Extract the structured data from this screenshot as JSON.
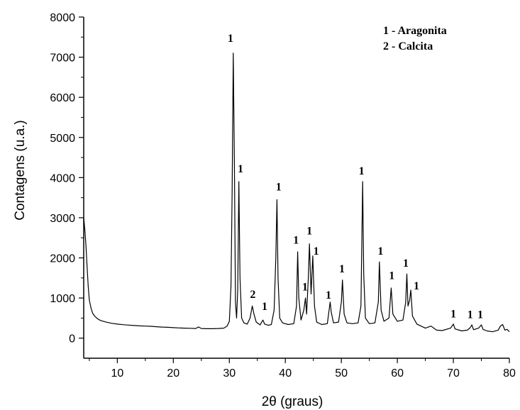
{
  "chart_data": {
    "type": "line",
    "title": "",
    "xlabel": "2θ (graus)",
    "ylabel": "Contagens (u.a.)",
    "xlim": [
      4,
      80
    ],
    "ylim": [
      -500,
      8000
    ],
    "xticks": [
      10,
      20,
      30,
      40,
      50,
      60,
      70,
      80
    ],
    "yticks": [
      0,
      1000,
      2000,
      3000,
      4000,
      5000,
      6000,
      7000,
      8000
    ],
    "grid": false,
    "legend": {
      "placement": "top-right",
      "entries": [
        "1 - Aragonita",
        "2 - Calcita"
      ]
    },
    "series": [
      {
        "color": "#000000",
        "points": [
          [
            4.0,
            3000
          ],
          [
            4.2,
            2700
          ],
          [
            4.4,
            2300
          ],
          [
            4.6,
            1800
          ],
          [
            4.8,
            1300
          ],
          [
            5.0,
            950
          ],
          [
            5.3,
            750
          ],
          [
            5.6,
            620
          ],
          [
            6.0,
            540
          ],
          [
            6.5,
            480
          ],
          [
            7.0,
            440
          ],
          [
            8.0,
            400
          ],
          [
            9.0,
            370
          ],
          [
            10.0,
            350
          ],
          [
            11.0,
            335
          ],
          [
            12.0,
            325
          ],
          [
            13.0,
            315
          ],
          [
            14.0,
            305
          ],
          [
            15.0,
            300
          ],
          [
            16.0,
            295
          ],
          [
            17.0,
            285
          ],
          [
            18.0,
            275
          ],
          [
            19.0,
            270
          ],
          [
            20.0,
            262
          ],
          [
            21.0,
            255
          ],
          [
            22.0,
            250
          ],
          [
            23.0,
            245
          ],
          [
            24.0,
            240
          ],
          [
            24.5,
            280
          ],
          [
            25.0,
            240
          ],
          [
            26.0,
            235
          ],
          [
            27.0,
            235
          ],
          [
            28.0,
            240
          ],
          [
            29.0,
            250
          ],
          [
            29.6,
            300
          ],
          [
            30.0,
            420
          ],
          [
            30.3,
            1300
          ],
          [
            30.5,
            3600
          ],
          [
            30.7,
            7100
          ],
          [
            30.9,
            4400
          ],
          [
            31.1,
            900
          ],
          [
            31.3,
            500
          ],
          [
            31.5,
            1200
          ],
          [
            31.7,
            3900
          ],
          [
            31.9,
            1500
          ],
          [
            32.2,
            500
          ],
          [
            32.6,
            380
          ],
          [
            33.2,
            350
          ],
          [
            33.7,
            500
          ],
          [
            34.1,
            800
          ],
          [
            34.4,
            600
          ],
          [
            34.8,
            400
          ],
          [
            35.5,
            330
          ],
          [
            36.0,
            450
          ],
          [
            36.3,
            350
          ],
          [
            37.0,
            320
          ],
          [
            37.5,
            340
          ],
          [
            38.0,
            700
          ],
          [
            38.3,
            2000
          ],
          [
            38.5,
            3450
          ],
          [
            38.7,
            1500
          ],
          [
            39.0,
            500
          ],
          [
            39.5,
            380
          ],
          [
            40.5,
            340
          ],
          [
            41.5,
            360
          ],
          [
            42.0,
            800
          ],
          [
            42.2,
            2150
          ],
          [
            42.4,
            1000
          ],
          [
            42.8,
            450
          ],
          [
            43.3,
            700
          ],
          [
            43.6,
            1000
          ],
          [
            43.8,
            600
          ],
          [
            44.1,
            1500
          ],
          [
            44.3,
            2350
          ],
          [
            44.6,
            1100
          ],
          [
            44.9,
            2050
          ],
          [
            45.2,
            800
          ],
          [
            45.6,
            400
          ],
          [
            46.5,
            340
          ],
          [
            47.5,
            360
          ],
          [
            48.0,
            900
          ],
          [
            48.2,
            650
          ],
          [
            48.6,
            380
          ],
          [
            49.5,
            400
          ],
          [
            50.0,
            900
          ],
          [
            50.2,
            1450
          ],
          [
            50.5,
            600
          ],
          [
            51.0,
            380
          ],
          [
            52.0,
            360
          ],
          [
            53.0,
            380
          ],
          [
            53.5,
            800
          ],
          [
            53.8,
            3900
          ],
          [
            54.0,
            1600
          ],
          [
            54.3,
            500
          ],
          [
            55.0,
            360
          ],
          [
            56.0,
            380
          ],
          [
            56.6,
            900
          ],
          [
            56.8,
            1900
          ],
          [
            57.1,
            700
          ],
          [
            57.6,
            420
          ],
          [
            58.5,
            500
          ],
          [
            58.9,
            1250
          ],
          [
            59.2,
            600
          ],
          [
            60.0,
            420
          ],
          [
            61.0,
            450
          ],
          [
            61.5,
            900
          ],
          [
            61.7,
            1600
          ],
          [
            61.9,
            800
          ],
          [
            62.2,
            950
          ],
          [
            62.4,
            1200
          ],
          [
            62.7,
            550
          ],
          [
            63.5,
            350
          ],
          [
            65.0,
            250
          ],
          [
            66.0,
            300
          ],
          [
            67.0,
            200
          ],
          [
            68.0,
            190
          ],
          [
            69.5,
            250
          ],
          [
            70.0,
            350
          ],
          [
            70.3,
            230
          ],
          [
            71.5,
            180
          ],
          [
            72.5,
            200
          ],
          [
            73.0,
            260
          ],
          [
            73.3,
            330
          ],
          [
            73.6,
            210
          ],
          [
            74.5,
            250
          ],
          [
            75.0,
            330
          ],
          [
            75.3,
            220
          ],
          [
            76.0,
            180
          ],
          [
            77.0,
            160
          ],
          [
            78.0,
            200
          ],
          [
            78.4,
            300
          ],
          [
            78.8,
            340
          ],
          [
            79.2,
            200
          ],
          [
            79.6,
            220
          ],
          [
            80.0,
            160
          ]
        ]
      }
    ],
    "annotations": [
      {
        "text": "1",
        "x": 30.2,
        "y": 7380
      },
      {
        "text": "1",
        "x": 32.0,
        "y": 4130
      },
      {
        "text": "2",
        "x": 34.2,
        "y": 1000
      },
      {
        "text": "1",
        "x": 36.3,
        "y": 700
      },
      {
        "text": "1",
        "x": 38.8,
        "y": 3680
      },
      {
        "text": "1",
        "x": 41.9,
        "y": 2350
      },
      {
        "text": "1",
        "x": 43.5,
        "y": 1190
      },
      {
        "text": "1",
        "x": 44.3,
        "y": 2580
      },
      {
        "text": "1",
        "x": 45.5,
        "y": 2080
      },
      {
        "text": "1",
        "x": 47.7,
        "y": 980
      },
      {
        "text": "1",
        "x": 50.1,
        "y": 1640
      },
      {
        "text": "1",
        "x": 53.6,
        "y": 4080
      },
      {
        "text": "1",
        "x": 57.0,
        "y": 2080
      },
      {
        "text": "1",
        "x": 59.0,
        "y": 1470
      },
      {
        "text": "1",
        "x": 61.5,
        "y": 1780
      },
      {
        "text": "1",
        "x": 63.4,
        "y": 1210
      },
      {
        "text": "1",
        "x": 70.0,
        "y": 520
      },
      {
        "text": "1",
        "x": 73.0,
        "y": 500
      },
      {
        "text": "1",
        "x": 74.8,
        "y": 500
      }
    ]
  }
}
